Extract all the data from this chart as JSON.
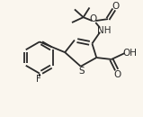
{
  "bg_color": "#faf6ee",
  "line_color": "#2a2a2a",
  "lw": 1.3,
  "figsize": [
    1.59,
    1.3
  ],
  "dpi": 100,
  "xlim": [
    0,
    159
  ],
  "ylim": [
    0,
    130
  ]
}
